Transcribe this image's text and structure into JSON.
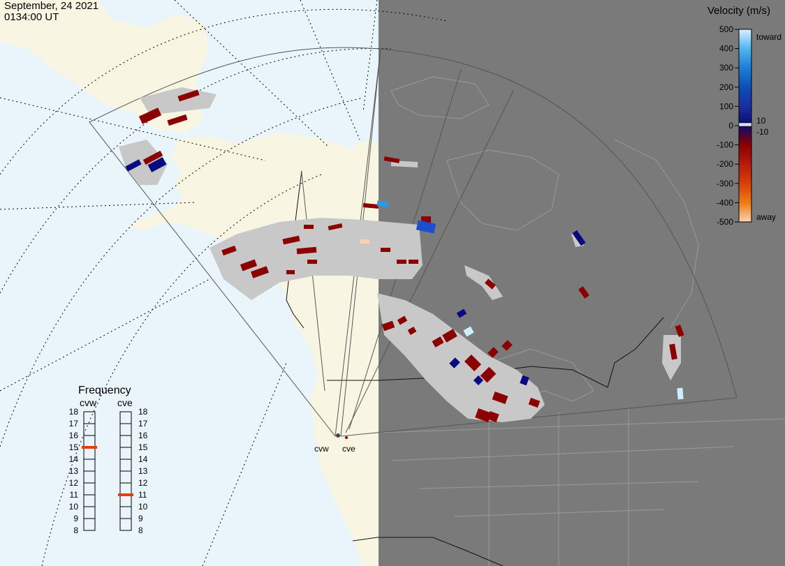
{
  "header": {
    "date": "September, 24 2021",
    "time": "0134:00 UT"
  },
  "colors": {
    "ocean": "#e9f5fb",
    "land": "#f8f6e3",
    "night": "#7a7a7a",
    "ground_scatter": "#c8c8c8",
    "fov_outline": "#555555"
  },
  "velocity_legend": {
    "title": "Velocity (m/s)",
    "ticks": [
      "500",
      "400",
      "300",
      "200",
      "100",
      "0",
      "-100",
      "-200",
      "-300",
      "-400",
      "-500"
    ],
    "toward_label": "toward",
    "away_label": "away",
    "small_labels": [
      "10",
      "-10"
    ],
    "color_stops": [
      "#d8f0ff",
      "#4fb6f0",
      "#1a7fd8",
      "#0b4fb8",
      "#1a2fa0",
      "#0a0a6e",
      "#8b0000",
      "#b81a0a",
      "#d8400a",
      "#ef7a14",
      "#fbd2ae"
    ]
  },
  "frequency_panel": {
    "title": "Frequency",
    "radars": [
      {
        "code": "cvw",
        "selected_mhz": 15
      },
      {
        "code": "cve",
        "selected_mhz": 11
      }
    ],
    "scale": [
      "18",
      "17",
      "16",
      "15",
      "14",
      "13",
      "12",
      "11",
      "10",
      "9",
      "8"
    ]
  },
  "radar_sites": [
    {
      "code": "cvw"
    },
    {
      "code": "cve"
    }
  ]
}
